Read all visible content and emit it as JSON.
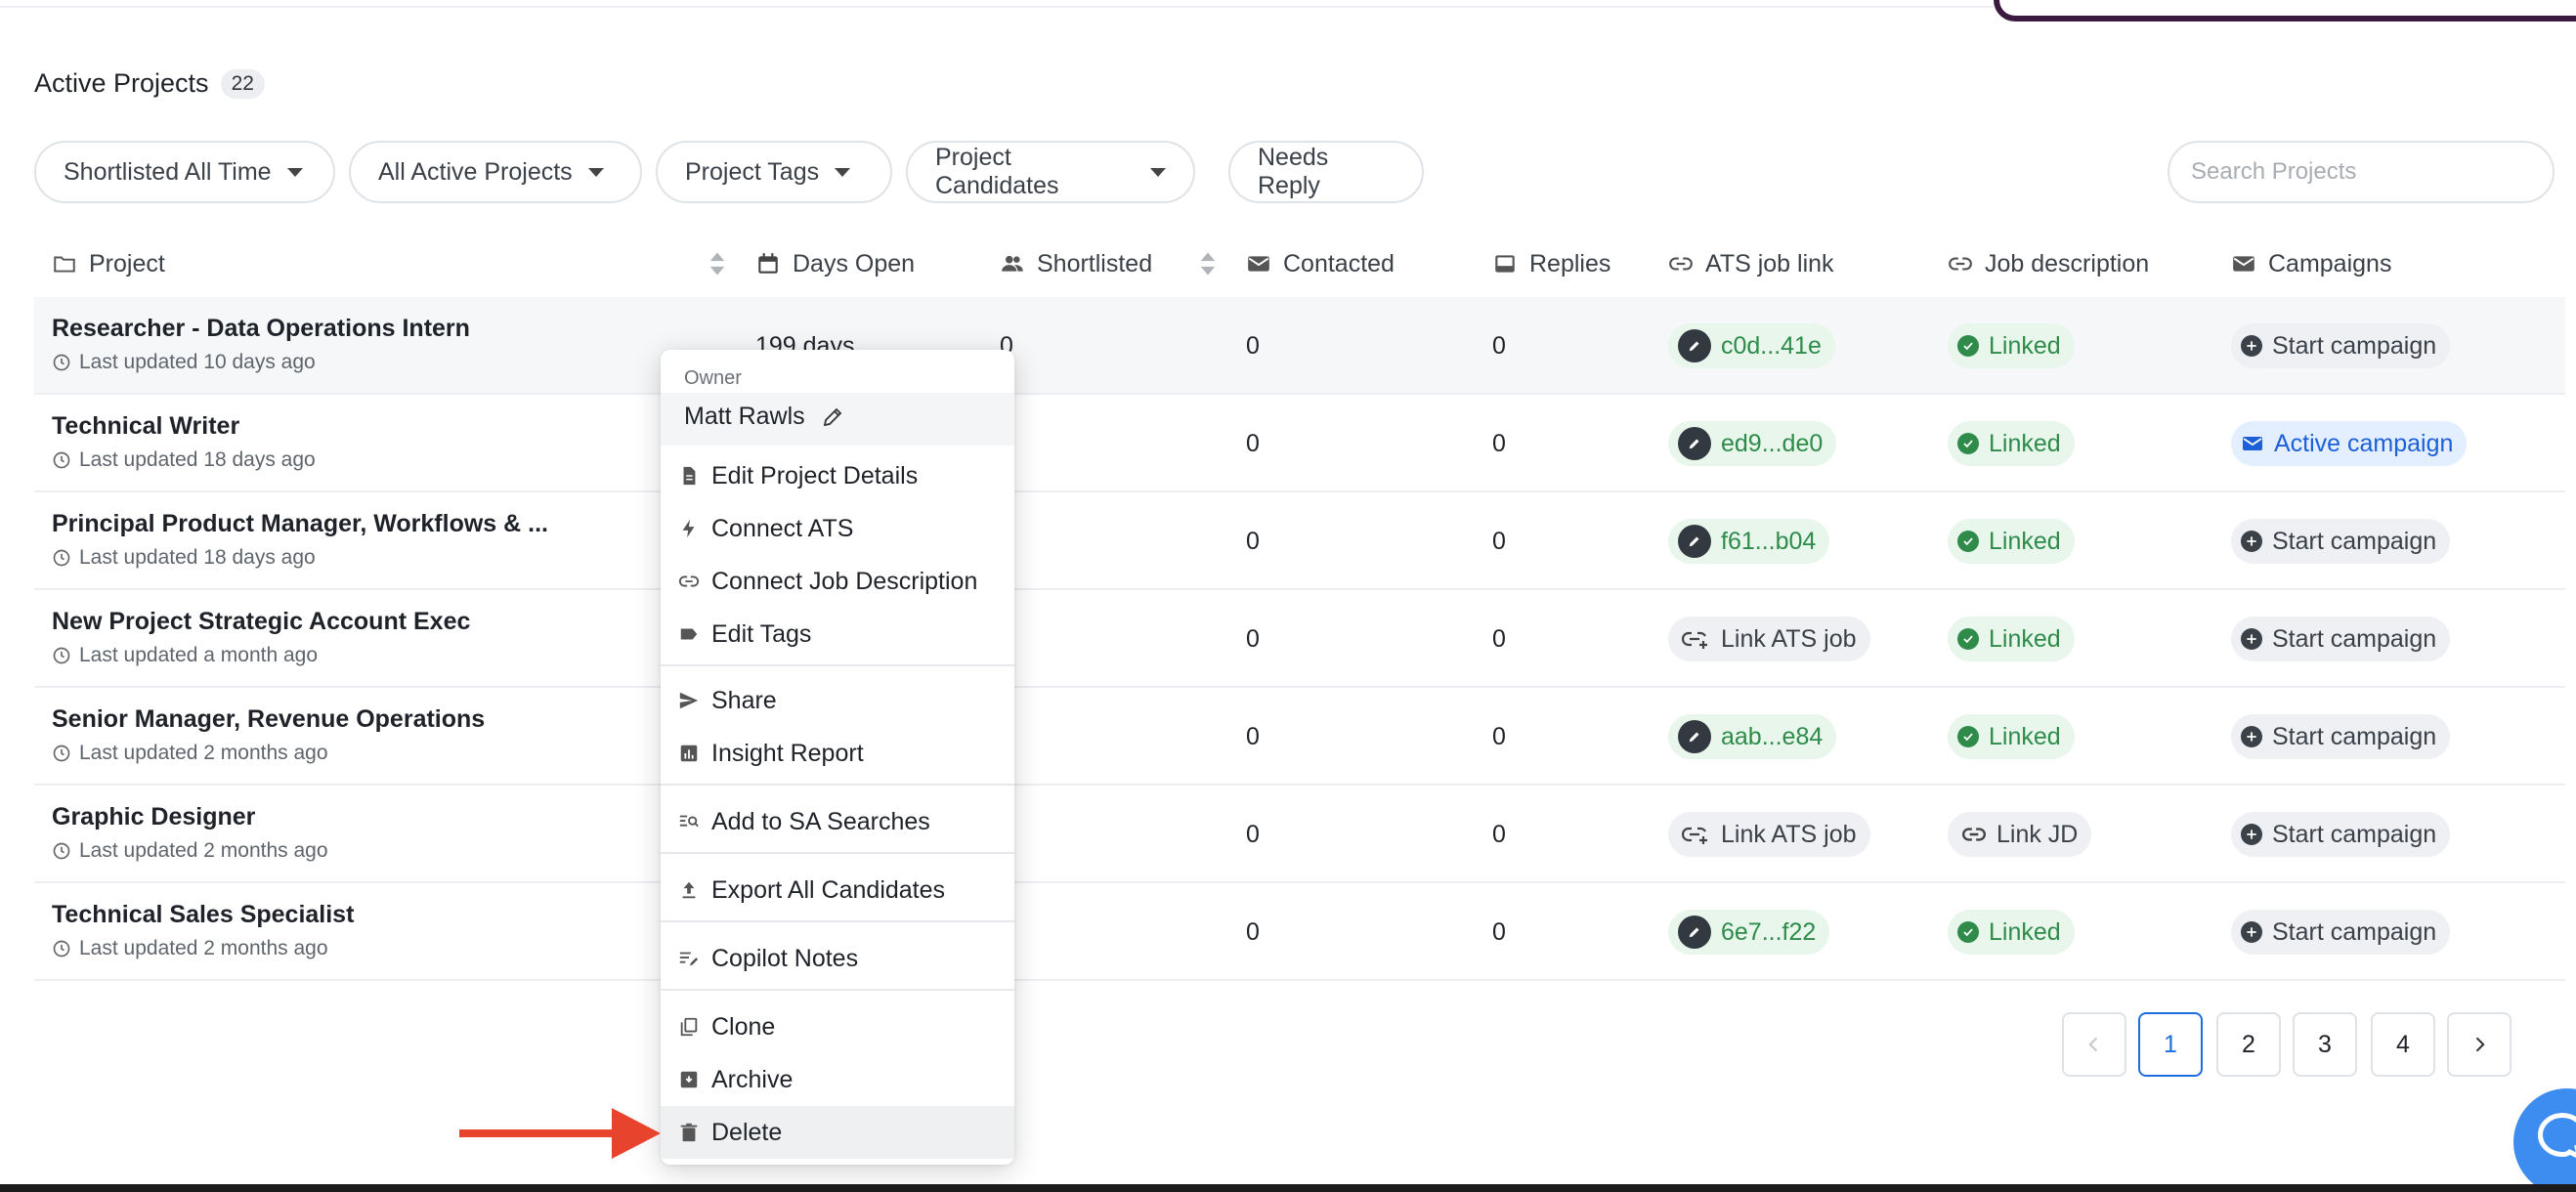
{
  "header": {
    "title": "Active Projects",
    "count": "22"
  },
  "filters": [
    {
      "label": "Shortlisted All Time"
    },
    {
      "label": "All Active Projects"
    },
    {
      "label": "Project Tags"
    },
    {
      "label": "Project Candidates"
    },
    {
      "label": "Needs Reply"
    }
  ],
  "search": {
    "placeholder": "Search Projects"
  },
  "columns": {
    "project": "Project",
    "days_open": "Days Open",
    "shortlisted": "Shortlisted",
    "contacted": "Contacted",
    "replies": "Replies",
    "ats": "ATS job link",
    "jd": "Job description",
    "campaigns": "Campaigns"
  },
  "rows": [
    {
      "name": "Researcher - Data Operations Intern",
      "updated": "Last updated 10 days ago",
      "days_open": "199 days",
      "shortlisted": "0",
      "contacted": "0",
      "replies": "0",
      "ats": "c0d...41e",
      "jd": "Linked",
      "campaign": "Start campaign"
    },
    {
      "name": "Technical Writer",
      "updated": "Last updated 18 days ago",
      "contacted": "0",
      "replies": "0",
      "ats": "ed9...de0",
      "jd": "Linked",
      "campaign": "Active campaign"
    },
    {
      "name": "Principal Product Manager, Workflows & ...",
      "updated": "Last updated 18 days ago",
      "contacted": "0",
      "replies": "0",
      "ats": "f61...b04",
      "jd": "Linked",
      "campaign": "Start campaign"
    },
    {
      "name": "New Project Strategic Account Exec",
      "updated": "Last updated a month ago",
      "contacted": "0",
      "replies": "0",
      "ats": "Link ATS job",
      "jd": "Linked",
      "campaign": "Start campaign"
    },
    {
      "name": "Senior Manager, Revenue Operations",
      "updated": "Last updated 2 months ago",
      "contacted": "0",
      "replies": "0",
      "ats": "aab...e84",
      "jd": "Linked",
      "campaign": "Start campaign"
    },
    {
      "name": "Graphic Designer",
      "updated": "Last updated 2 months ago",
      "contacted": "0",
      "replies": "0",
      "ats": "Link ATS job",
      "jd": "Link JD",
      "campaign": "Start campaign"
    },
    {
      "name": "Technical Sales Specialist",
      "updated": "Last updated 2 months ago",
      "contacted": "0",
      "replies": "0",
      "ats": "6e7...f22",
      "jd": "Linked",
      "campaign": "Start campaign"
    }
  ],
  "menu": {
    "owner_label": "Owner",
    "owner_name": "Matt Rawls",
    "items": {
      "edit_details": "Edit Project Details",
      "connect_ats": "Connect ATS",
      "connect_jd": "Connect Job Description",
      "edit_tags": "Edit Tags",
      "share": "Share",
      "insight_report": "Insight Report",
      "add_sa": "Add to SA Searches",
      "export_all": "Export All Candidates",
      "copilot_notes": "Copilot Notes",
      "clone": "Clone",
      "archive": "Archive",
      "delete": "Delete"
    }
  },
  "pagination": {
    "pages": [
      "1",
      "2",
      "3",
      "4"
    ],
    "current": "1"
  },
  "colors": {
    "accent": "#1d6fe0",
    "linked_green": "#2e8b4a",
    "annotation_arrow": "#e8432d"
  }
}
